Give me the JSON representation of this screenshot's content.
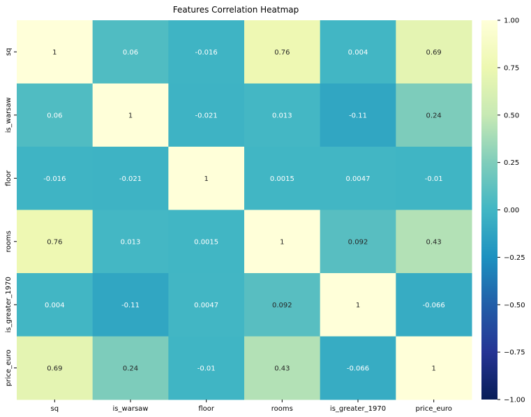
{
  "chart_data": {
    "type": "heatmap",
    "title": "Features Correlation Heatmap",
    "xlabel": "",
    "ylabel": "",
    "x_categories": [
      "sq",
      "is_warsaw",
      "floor",
      "rooms",
      "is_greater_1970",
      "price_euro"
    ],
    "y_categories": [
      "sq",
      "is_warsaw",
      "floor",
      "rooms",
      "is_greater_1970",
      "price_euro"
    ],
    "values": [
      [
        1,
        0.06,
        -0.016,
        0.76,
        0.004,
        0.69
      ],
      [
        0.06,
        1,
        -0.021,
        0.013,
        -0.11,
        0.24
      ],
      [
        -0.016,
        -0.021,
        1,
        0.0015,
        0.0047,
        -0.01
      ],
      [
        0.76,
        0.013,
        0.0015,
        1,
        0.092,
        0.43
      ],
      [
        0.004,
        -0.11,
        0.0047,
        0.092,
        1,
        -0.066
      ],
      [
        0.69,
        0.24,
        -0.01,
        0.43,
        -0.066,
        1
      ]
    ],
    "annotations": [
      [
        "1",
        "0.06",
        "-0.016",
        "0.76",
        "0.004",
        "0.69"
      ],
      [
        "0.06",
        "1",
        "-0.021",
        "0.013",
        "-0.11",
        "0.24"
      ],
      [
        "-0.016",
        "-0.021",
        "1",
        "0.0015",
        "0.0047",
        "-0.01"
      ],
      [
        "0.76",
        "0.013",
        "0.0015",
        "1",
        "0.092",
        "0.43"
      ],
      [
        "0.004",
        "-0.11",
        "0.0047",
        "0.092",
        "1",
        "-0.066"
      ],
      [
        "0.69",
        "0.24",
        "-0.01",
        "0.43",
        "-0.066",
        "1"
      ]
    ],
    "colormap": "YlGnBu",
    "vmin": -1,
    "vmax": 1,
    "colorbar": {
      "ticks": [
        1,
        0.75,
        0.5,
        0.25,
        0,
        -0.25,
        -0.5,
        -0.75,
        -1
      ],
      "tick_labels": [
        "1.00",
        "0.75",
        "0.50",
        "0.25",
        "0.00",
        "−0.25",
        "−0.50",
        "−0.75",
        "−1.00"
      ],
      "placement": "right"
    },
    "grid": false
  }
}
